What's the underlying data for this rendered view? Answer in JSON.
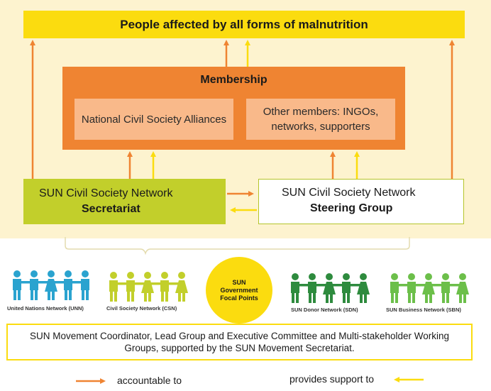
{
  "banner": {
    "text": "People affected by all forms of malnutrition"
  },
  "membership": {
    "title": "Membership",
    "left_box": "National Civil Society Alliances",
    "right_box": "Other members: INGOs, networks, supporters"
  },
  "secretariat": {
    "line1": "SUN Civil Society Network",
    "line2": "Secretariat"
  },
  "steering": {
    "line1": "SUN Civil Society Network",
    "line2": "Steering Group"
  },
  "focal_points": {
    "text": "SUN Government Focal Points"
  },
  "networks": [
    {
      "label": "United Nations Network (UNN)",
      "color": "#2aa3cf"
    },
    {
      "label": "Civil Society Network (CSN)",
      "color": "#c2cf2b"
    },
    {
      "label": "SUN Donor Network (SDN)",
      "color": "#2e8b3e"
    },
    {
      "label": "SUN Business Network (SBN)",
      "color": "#6cbf4a"
    }
  ],
  "coordinator": {
    "text": "SUN Movement Coordinator, Lead Group and Executive Committee and Multi-stakeholder Working Groups, supported by the SUN Movement Secretariat."
  },
  "legend": {
    "accountable": "accountable to",
    "support": "provides support to",
    "accountable_color": "#ef8432",
    "support_color": "#fbdc0f"
  }
}
